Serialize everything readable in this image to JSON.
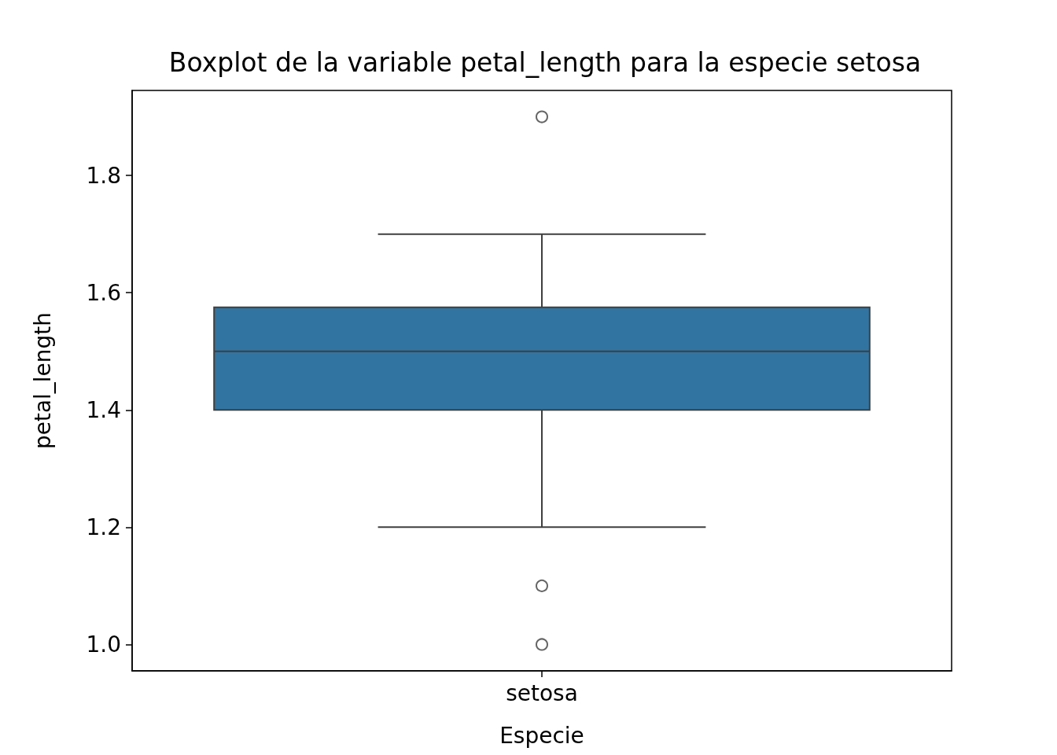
{
  "chart_data": {
    "type": "box",
    "title": "Boxplot de la variable petal_length para la especie setosa",
    "xlabel": "Especie",
    "ylabel": "petal_length",
    "categories": [
      "setosa"
    ],
    "series": [
      {
        "color": "#3274a1",
        "boxes": [
          {
            "low": 1.2,
            "q1": 1.4,
            "median": 1.5,
            "q3": 1.575,
            "high": 1.7,
            "outliers": [
              1.9,
              1.1,
              1.0
            ]
          }
        ]
      }
    ],
    "ylim": [
      0.955,
      1.945
    ],
    "yticks": [
      {
        "value": 1.0,
        "label": "1.0"
      },
      {
        "value": 1.2,
        "label": "1.2"
      },
      {
        "value": 1.4,
        "label": "1.4"
      },
      {
        "value": 1.6,
        "label": "1.6"
      },
      {
        "value": 1.8,
        "label": "1.8"
      }
    ],
    "grid": false,
    "marker": "circle"
  }
}
